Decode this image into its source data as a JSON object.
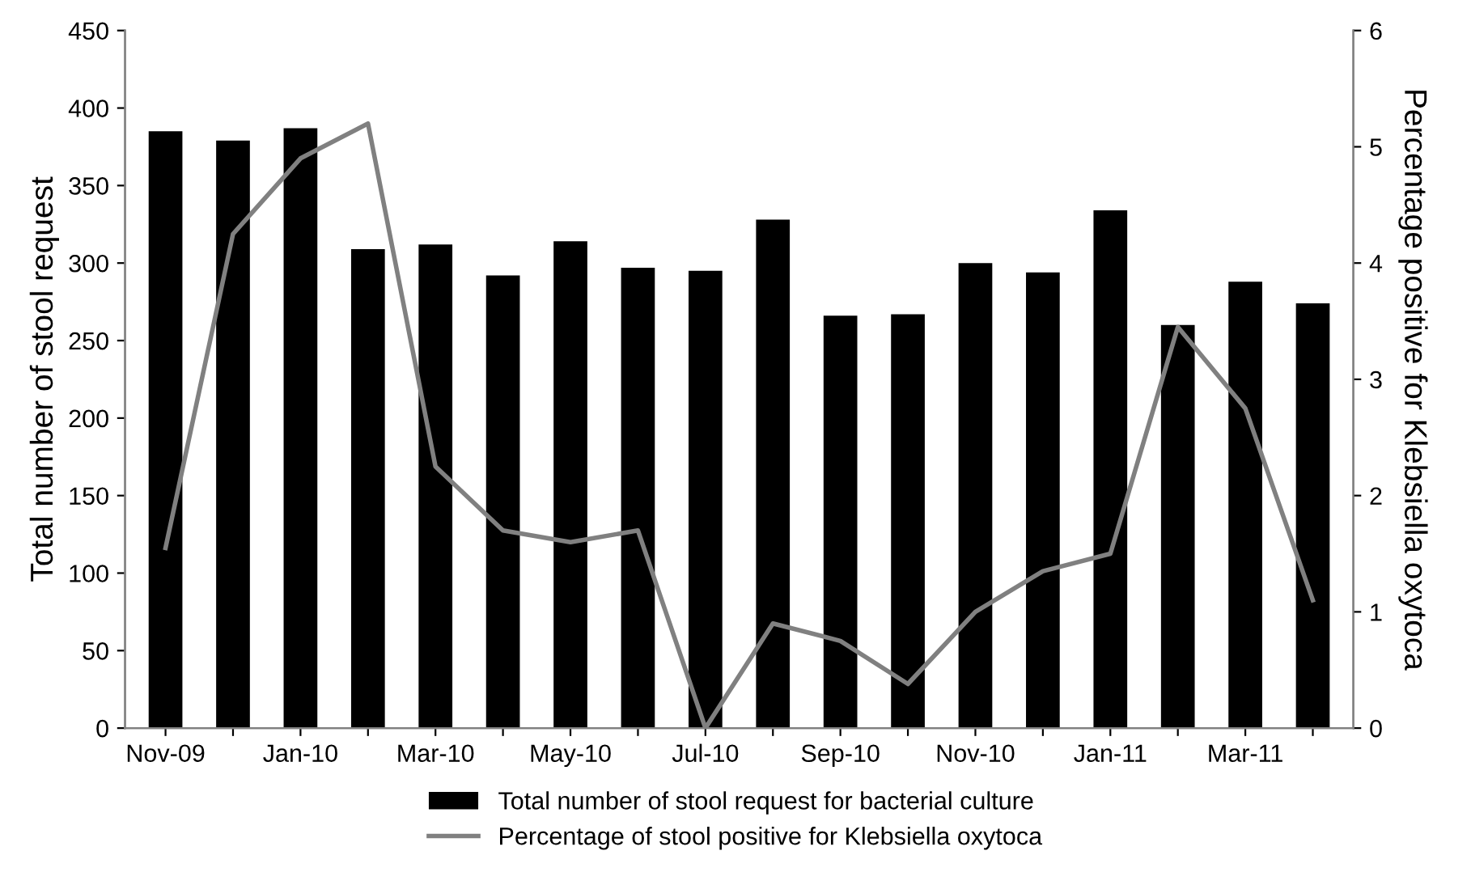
{
  "chart_data": {
    "type": "bar",
    "categories": [
      "Nov-09",
      null,
      "Jan-10",
      null,
      "Mar-10",
      null,
      "May-10",
      null,
      "Jul-10",
      null,
      "Sep-10",
      null,
      "Nov-10",
      null,
      "Jan-11",
      null,
      "Mar-11",
      null
    ],
    "ylabel": "Total number of stool request",
    "y2label": "Percentage positive for Klebsiella oxytoca",
    "ylim": [
      0,
      450
    ],
    "yticks": [
      0,
      50,
      100,
      150,
      200,
      250,
      300,
      350,
      400,
      450
    ],
    "y2lim": [
      0,
      6
    ],
    "y2ticks": [
      0,
      1,
      2,
      3,
      4,
      5,
      6
    ],
    "legend": "bottom",
    "grid": false,
    "series": [
      {
        "name": "Total number of stool request for bacterial culture",
        "color": "#000000",
        "values": [
          385,
          379,
          387,
          309,
          312,
          292,
          314,
          297,
          295,
          328,
          266,
          267,
          300,
          294,
          334,
          260,
          288,
          274
        ]
      },
      {
        "name": "Percentage of stool positive for Klebsiella oxytoca",
        "type": "line",
        "axis": "y2",
        "color": "#808080",
        "values": [
          1.55,
          4.25,
          4.9,
          5.2,
          2.25,
          1.7,
          1.6,
          1.7,
          0,
          0.9,
          0.75,
          0.38,
          1.0,
          1.35,
          1.5,
          3.45,
          2.75,
          1.1
        ]
      }
    ]
  }
}
